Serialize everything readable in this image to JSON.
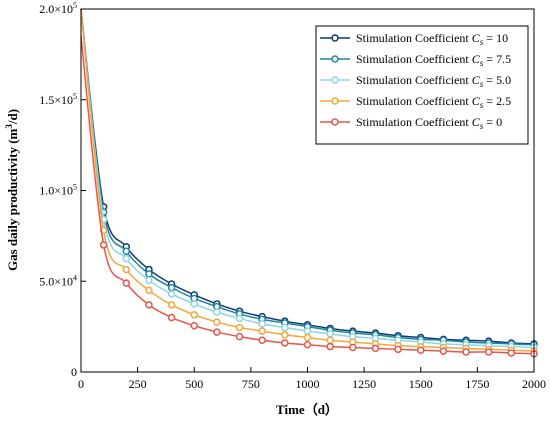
{
  "chart_data": {
    "type": "line",
    "title": "",
    "xlabel": "Time（d）",
    "ylabel": "Gas daily productivity (m³/d)",
    "xlim": [
      0,
      2000
    ],
    "ylim": [
      0,
      200000
    ],
    "x_ticks": [
      0,
      250,
      500,
      750,
      1000,
      1250,
      1500,
      1750,
      2000
    ],
    "y_ticks": [
      0,
      50000,
      100000,
      150000,
      200000
    ],
    "y_tick_labels": [
      {
        "mant": "0",
        "exp": ""
      },
      {
        "mant": "5.0×10",
        "exp": "4"
      },
      {
        "mant": "1.0×10",
        "exp": "5"
      },
      {
        "mant": "1.5×10",
        "exp": "5"
      },
      {
        "mant": "2.0×10",
        "exp": "5"
      }
    ],
    "grid": false,
    "legend_position": "top-right",
    "x": [
      100,
      200,
      300,
      400,
      500,
      600,
      700,
      800,
      900,
      1000,
      1100,
      1200,
      1300,
      1400,
      1500,
      1600,
      1700,
      1800,
      1900,
      2000
    ],
    "series": [
      {
        "name": "Stimulation Coefficient Cs = 10",
        "legend_prefix": "Stimulation Coefficient ",
        "legend_var": "C",
        "legend_sub": "s",
        "legend_value": " = 10",
        "color": "#0d3b73",
        "start_value": 200000,
        "values": [
          91000,
          69000,
          56500,
          48500,
          42500,
          37500,
          33500,
          30500,
          28000,
          26000,
          24000,
          22500,
          21500,
          20000,
          19000,
          18000,
          17500,
          17000,
          16000,
          15500
        ]
      },
      {
        "name": "Stimulation Coefficient Cs = 7.5",
        "legend_prefix": "Stimulation Coefficient ",
        "legend_var": "C",
        "legend_sub": "s",
        "legend_value": " = 7.5",
        "color": "#1f86a0",
        "start_value": 200000,
        "values": [
          88000,
          66500,
          54000,
          46500,
          40500,
          36000,
          32000,
          29000,
          27000,
          25000,
          23000,
          21500,
          20500,
          19000,
          18000,
          17500,
          16500,
          16000,
          15500,
          15000
        ]
      },
      {
        "name": "Stimulation Coefficient Cs = 5.0",
        "legend_prefix": "Stimulation Coefficient ",
        "legend_var": "C",
        "legend_sub": "s",
        "legend_value": " = 5.0",
        "color": "#8fd5e6",
        "start_value": 200000,
        "values": [
          84000,
          62500,
          50500,
          43000,
          37500,
          33000,
          29500,
          26500,
          24500,
          22500,
          21000,
          19500,
          18500,
          17500,
          16500,
          15500,
          15000,
          14500,
          14000,
          13500
        ]
      },
      {
        "name": "Stimulation Coefficient Cs = 2.5",
        "legend_prefix": "Stimulation Coefficient ",
        "legend_var": "C",
        "legend_sub": "s",
        "legend_value": " = 2.5",
        "color": "#f5a63b",
        "start_value": 200000,
        "values": [
          78000,
          56500,
          45000,
          37000,
          31500,
          27500,
          24500,
          22500,
          20500,
          19000,
          17500,
          16500,
          15500,
          14500,
          14000,
          13500,
          13000,
          12500,
          12000,
          11500
        ]
      },
      {
        "name": "Stimulation Coefficient Cs = 0",
        "legend_prefix": "Stimulation Coefficient ",
        "legend_var": "C",
        "legend_sub": "s",
        "legend_value": " = 0",
        "color": "#e8554a",
        "start_value": 185000,
        "values": [
          70000,
          49000,
          37000,
          30000,
          25500,
          22000,
          19500,
          17500,
          16000,
          15000,
          14000,
          13500,
          13000,
          12500,
          12000,
          11500,
          11000,
          11000,
          10500,
          10000
        ]
      }
    ]
  }
}
